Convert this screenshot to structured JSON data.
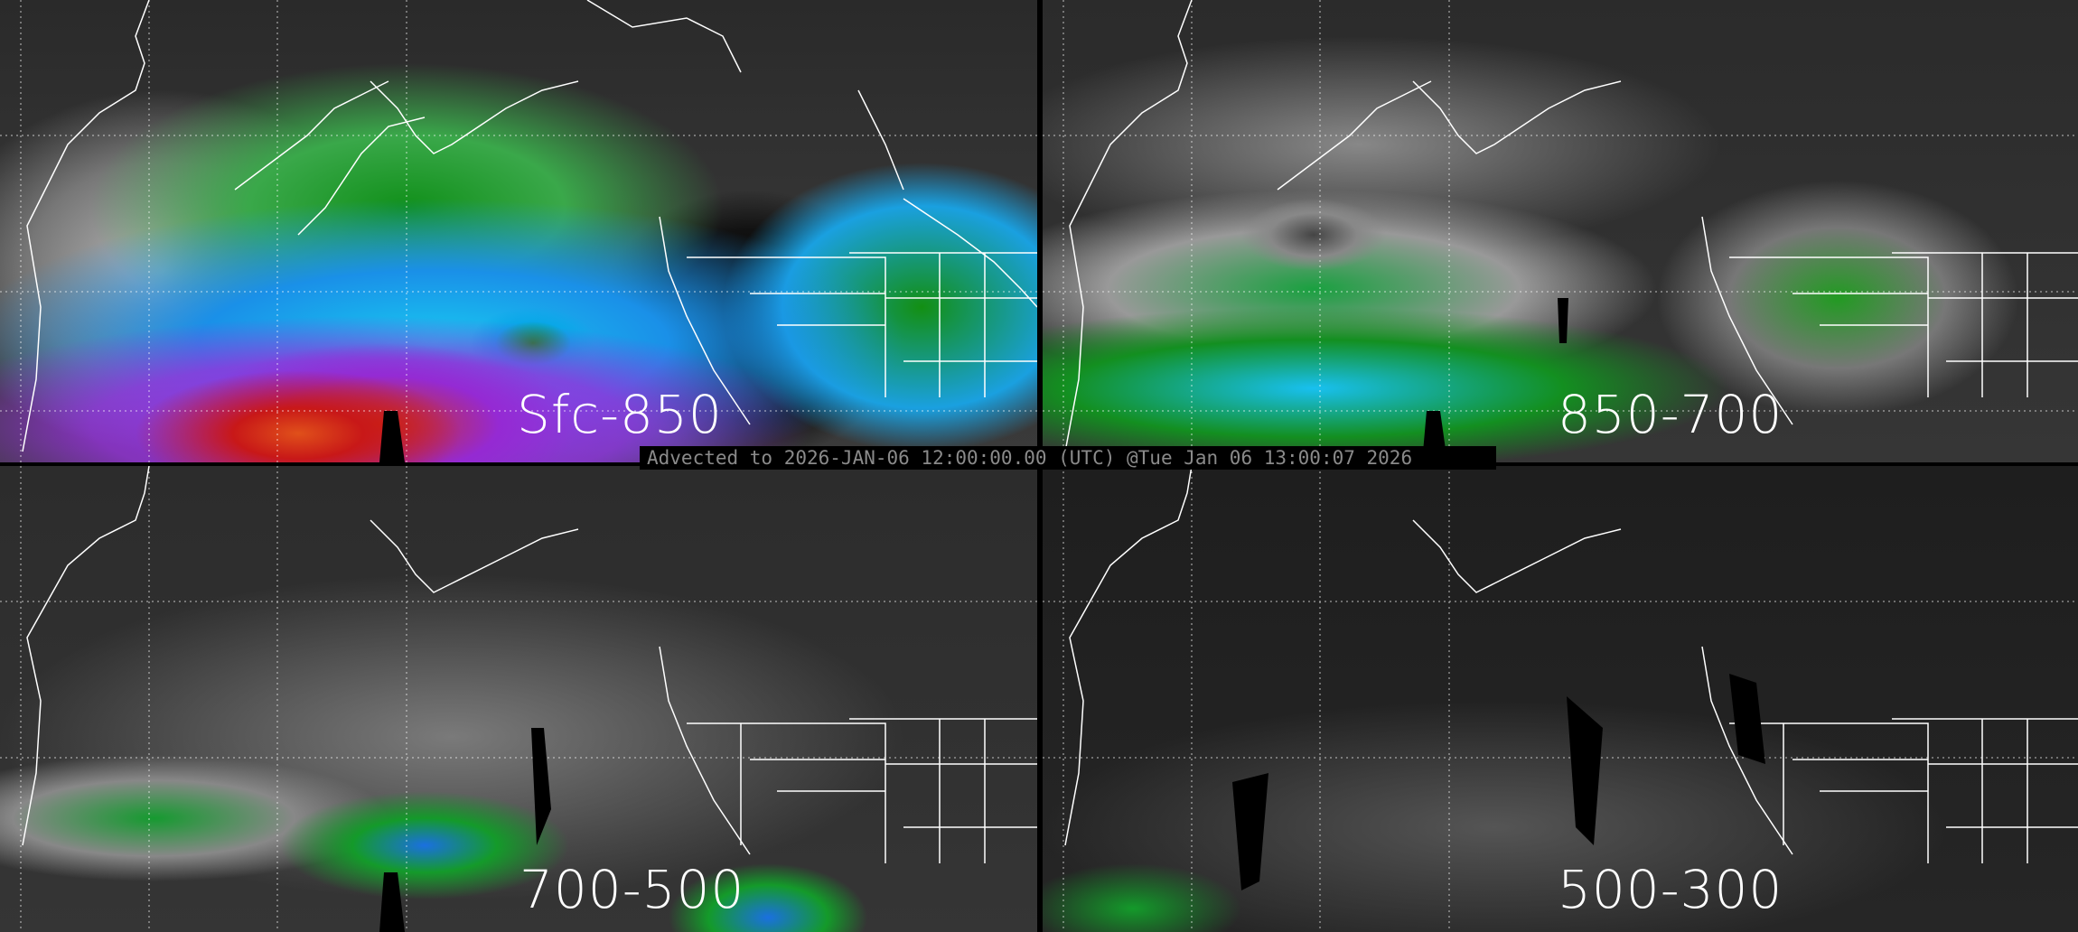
{
  "panels": [
    {
      "label": "Sfc-850"
    },
    {
      "label": "850-700"
    },
    {
      "label": "700-500"
    },
    {
      "label": "500-300"
    }
  ],
  "caption": "Advected to 2026-JAN-06 12:00:00.00 (UTC) @Tue Jan 06 13:00:07 2026",
  "colors": {
    "background": "#2a2a2a",
    "coastline": "#ffffff",
    "caption_text": "#8a8a8a",
    "scale": [
      "#777777",
      "#1a9a1a",
      "#1a90e8",
      "#18c8f0",
      "#9a30e0",
      "#c81818",
      "#e0501a"
    ]
  }
}
